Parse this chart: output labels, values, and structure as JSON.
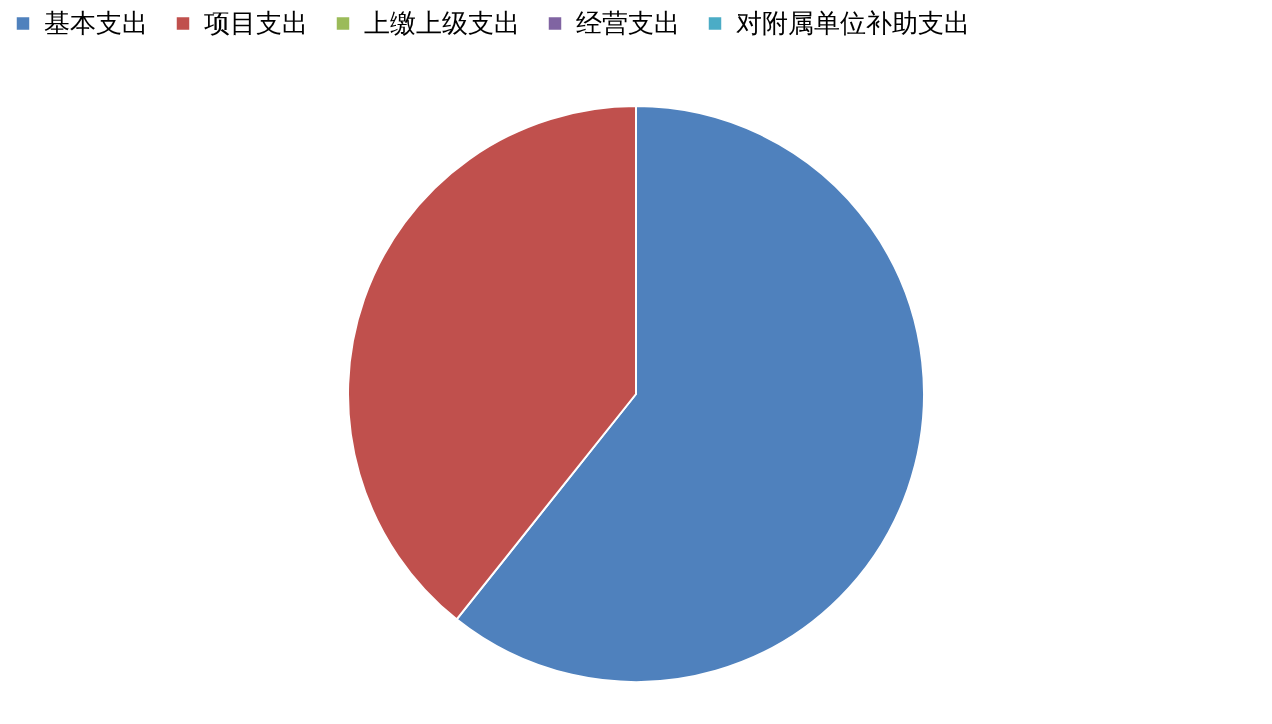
{
  "chart_data": {
    "type": "pie",
    "categories": [
      "基本支出",
      "项目支出",
      "上缴上级支出",
      "经营支出",
      "对附属单位补助支出"
    ],
    "values": [
      60.7,
      39.3,
      0,
      0,
      0
    ],
    "colors": [
      "#4f81bd",
      "#c0504d",
      "#9bbb59",
      "#8064a2",
      "#4bacc6"
    ],
    "legend": "top"
  }
}
